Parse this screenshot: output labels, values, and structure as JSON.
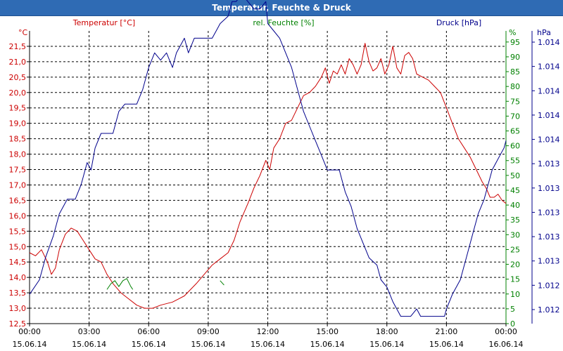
{
  "window": {
    "title": "Temperatur, Feuchte & Druck"
  },
  "chart_data": {
    "type": "line",
    "title": "Temperatur, Feuchte & Druck",
    "x_tick_labels": [
      {
        "time": "00:00",
        "date": "15.06.14"
      },
      {
        "time": "03:00",
        "date": "15.06.14"
      },
      {
        "time": "06:00",
        "date": "15.06.14"
      },
      {
        "time": "09:00",
        "date": "15.06.14"
      },
      {
        "time": "12:00",
        "date": "15.06.14"
      },
      {
        "time": "15:00",
        "date": "15.06.14"
      },
      {
        "time": "18:00",
        "date": "15.06.14"
      },
      {
        "time": "21:00",
        "date": "15.06.14"
      },
      {
        "time": "00:00",
        "date": "16.06.14"
      }
    ],
    "xlim_hours": [
      0,
      24
    ],
    "axes": {
      "temperature": {
        "label": "Temperatur [°C]",
        "unit": "°C",
        "color": "#cc0000",
        "ylim": [
          12.5,
          22.0
        ],
        "ticks": [
          "12,5",
          "13,0",
          "13,5",
          "14,0",
          "14,5",
          "15,0",
          "15,5",
          "16,0",
          "16,5",
          "17,0",
          "17,5",
          "18,0",
          "18,5",
          "19,0",
          "19,5",
          "20,0",
          "20,5",
          "21,0",
          "21,5"
        ]
      },
      "humidity": {
        "label": "rel. Feuchte [%]",
        "unit": "%",
        "color": "#008000",
        "ylim": [
          0,
          98.75
        ],
        "ticks": [
          "0",
          "5",
          "10",
          "15",
          "20",
          "25",
          "30",
          "35",
          "40",
          "45",
          "50",
          "55",
          "60",
          "65",
          "70",
          "75",
          "80",
          "85",
          "90",
          "95"
        ]
      },
      "pressure": {
        "label": "Druck [hPa]",
        "unit": "hPa",
        "color": "#00008b",
        "ylim": [
          1012.0,
          1014.0
        ],
        "ticks": [
          "1.012",
          "1.012",
          "1.013",
          "1.013",
          "1.013",
          "1.013",
          "1.013",
          "1.014",
          "1.014",
          "1.014",
          "1.014",
          "1.014"
        ]
      }
    },
    "series": [
      {
        "name": "Temperatur",
        "axis": "temperature",
        "color": "#cc0000",
        "points": [
          [
            0,
            14.8
          ],
          [
            0.3,
            14.7
          ],
          [
            0.6,
            14.9
          ],
          [
            0.9,
            14.5
          ],
          [
            1.1,
            14.1
          ],
          [
            1.3,
            14.3
          ],
          [
            1.5,
            14.9
          ],
          [
            1.8,
            15.4
          ],
          [
            2.1,
            15.6
          ],
          [
            2.4,
            15.5
          ],
          [
            2.7,
            15.2
          ],
          [
            3.0,
            14.9
          ],
          [
            3.3,
            14.6
          ],
          [
            3.6,
            14.5
          ],
          [
            3.9,
            14.1
          ],
          [
            4.2,
            13.8
          ],
          [
            4.6,
            13.5
          ],
          [
            5.0,
            13.3
          ],
          [
            5.4,
            13.1
          ],
          [
            5.8,
            13.0
          ],
          [
            6.2,
            13.0
          ],
          [
            6.6,
            13.1
          ],
          [
            7.2,
            13.2
          ],
          [
            7.8,
            13.4
          ],
          [
            8.4,
            13.8
          ],
          [
            8.8,
            14.1
          ],
          [
            9.2,
            14.4
          ],
          [
            9.6,
            14.6
          ],
          [
            10.0,
            14.8
          ],
          [
            10.3,
            15.2
          ],
          [
            10.6,
            15.8
          ],
          [
            11.0,
            16.4
          ],
          [
            11.3,
            16.9
          ],
          [
            11.6,
            17.3
          ],
          [
            11.9,
            17.8
          ],
          [
            12.1,
            17.5
          ],
          [
            12.3,
            18.2
          ],
          [
            12.6,
            18.5
          ],
          [
            12.9,
            19.0
          ],
          [
            13.2,
            19.1
          ],
          [
            13.5,
            19.5
          ],
          [
            13.8,
            19.9
          ],
          [
            14.1,
            20.0
          ],
          [
            14.4,
            20.2
          ],
          [
            14.7,
            20.5
          ],
          [
            14.9,
            20.8
          ],
          [
            15.1,
            20.3
          ],
          [
            15.3,
            20.7
          ],
          [
            15.5,
            20.6
          ],
          [
            15.7,
            20.9
          ],
          [
            15.9,
            20.6
          ],
          [
            16.1,
            21.1
          ],
          [
            16.3,
            20.9
          ],
          [
            16.5,
            20.6
          ],
          [
            16.7,
            20.9
          ],
          [
            16.9,
            21.6
          ],
          [
            17.1,
            21.0
          ],
          [
            17.3,
            20.7
          ],
          [
            17.5,
            20.8
          ],
          [
            17.7,
            21.1
          ],
          [
            17.9,
            20.6
          ],
          [
            18.1,
            20.9
          ],
          [
            18.3,
            21.5
          ],
          [
            18.5,
            20.8
          ],
          [
            18.7,
            20.6
          ],
          [
            18.9,
            21.2
          ],
          [
            19.1,
            21.3
          ],
          [
            19.3,
            21.1
          ],
          [
            19.5,
            20.6
          ],
          [
            19.8,
            20.5
          ],
          [
            20.1,
            20.4
          ],
          [
            20.4,
            20.2
          ],
          [
            20.7,
            20.0
          ],
          [
            21.0,
            19.5
          ],
          [
            21.3,
            19.0
          ],
          [
            21.6,
            18.5
          ],
          [
            21.9,
            18.2
          ],
          [
            22.2,
            17.9
          ],
          [
            22.5,
            17.5
          ],
          [
            22.8,
            17.1
          ],
          [
            23.0,
            16.9
          ],
          [
            23.2,
            16.6
          ],
          [
            23.4,
            16.6
          ],
          [
            23.6,
            16.7
          ],
          [
            23.8,
            16.5
          ],
          [
            24.0,
            16.4
          ]
        ]
      },
      {
        "name": "rel. Feuchte",
        "axis": "humidity",
        "color": "#008000",
        "points": [
          [
            3.9,
            11.5
          ],
          [
            4.1,
            13.5
          ],
          [
            4.3,
            14.5
          ],
          [
            4.5,
            12.5
          ],
          [
            4.7,
            14.5
          ],
          [
            4.9,
            15.2
          ],
          [
            5.1,
            12.5
          ],
          [
            5.2,
            11.5
          ]
        ],
        "points_2": [
          [
            9.6,
            14.5
          ],
          [
            9.8,
            13.0
          ]
        ]
      },
      {
        "name": "Druck",
        "axis": "pressure",
        "color": "#00008b",
        "points": [
          [
            0,
            1012.2
          ],
          [
            0.5,
            1012.3
          ],
          [
            0.8,
            1012.45
          ],
          [
            1.2,
            1012.6
          ],
          [
            1.5,
            1012.75
          ],
          [
            1.9,
            1012.85
          ],
          [
            2.3,
            1012.85
          ],
          [
            2.6,
            1012.95
          ],
          [
            2.9,
            1013.1
          ],
          [
            3.1,
            1013.05
          ],
          [
            3.3,
            1013.2
          ],
          [
            3.6,
            1013.3
          ],
          [
            4.2,
            1013.3
          ],
          [
            4.5,
            1013.45
          ],
          [
            4.8,
            1013.5
          ],
          [
            5.4,
            1013.5
          ],
          [
            5.7,
            1013.6
          ],
          [
            6.0,
            1013.75
          ],
          [
            6.3,
            1013.85
          ],
          [
            6.6,
            1013.8
          ],
          [
            6.9,
            1013.85
          ],
          [
            7.2,
            1013.75
          ],
          [
            7.4,
            1013.85
          ],
          [
            7.6,
            1013.9
          ],
          [
            7.8,
            1013.95
          ],
          [
            8.0,
            1013.85
          ],
          [
            8.3,
            1013.95
          ],
          [
            9.2,
            1013.95
          ],
          [
            9.4,
            1014.0
          ],
          [
            9.6,
            1014.05
          ],
          [
            10.0,
            1014.1
          ],
          [
            10.2,
            1014.2
          ],
          [
            10.4,
            1014.2
          ],
          [
            10.7,
            1014.25
          ],
          [
            11.0,
            1014.2
          ],
          [
            11.3,
            1014.15
          ],
          [
            11.6,
            1014.15
          ],
          [
            11.9,
            1014.2
          ],
          [
            12.0,
            1014.05
          ],
          [
            12.3,
            1014.0
          ],
          [
            12.6,
            1013.95
          ],
          [
            12.9,
            1013.85
          ],
          [
            13.2,
            1013.75
          ],
          [
            13.5,
            1013.6
          ],
          [
            13.8,
            1013.45
          ],
          [
            14.1,
            1013.35
          ],
          [
            14.4,
            1013.25
          ],
          [
            14.7,
            1013.15
          ],
          [
            15.0,
            1013.05
          ],
          [
            15.6,
            1013.05
          ],
          [
            15.9,
            1012.9
          ],
          [
            16.2,
            1012.8
          ],
          [
            16.5,
            1012.65
          ],
          [
            16.8,
            1012.55
          ],
          [
            17.1,
            1012.45
          ],
          [
            17.5,
            1012.4
          ],
          [
            17.7,
            1012.3
          ],
          [
            18.0,
            1012.25
          ],
          [
            18.3,
            1012.15
          ],
          [
            18.7,
            1012.05
          ],
          [
            19.2,
            1012.05
          ],
          [
            19.5,
            1012.1
          ],
          [
            19.7,
            1012.05
          ],
          [
            20.1,
            1012.05
          ],
          [
            20.9,
            1012.05
          ],
          [
            21.0,
            1012.1
          ],
          [
            21.3,
            1012.2
          ],
          [
            21.7,
            1012.3
          ],
          [
            22.0,
            1012.45
          ],
          [
            22.3,
            1012.6
          ],
          [
            22.6,
            1012.75
          ],
          [
            22.9,
            1012.85
          ],
          [
            23.1,
            1012.95
          ],
          [
            23.3,
            1013.05
          ],
          [
            23.5,
            1013.1
          ],
          [
            23.7,
            1013.15
          ],
          [
            23.9,
            1013.2
          ],
          [
            24.0,
            1013.25
          ]
        ]
      }
    ]
  }
}
